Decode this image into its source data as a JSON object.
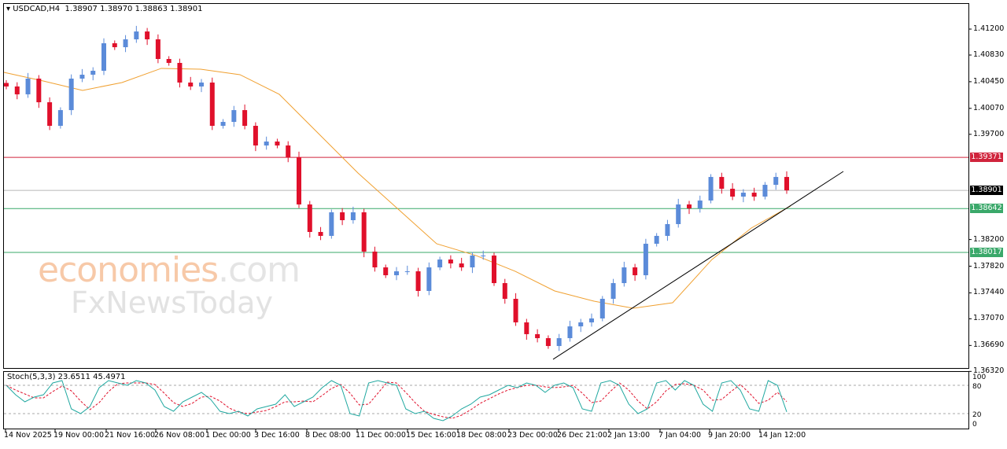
{
  "header": {
    "symbol": "USDCAD,H4",
    "ohlc": "1.38907 1.38970 1.38863 1.38901"
  },
  "watermark": {
    "brand": "economies",
    "suffix": ".com",
    "sub": "FxNewsToday"
  },
  "chart_data": {
    "type": "candlestick",
    "symbol": "USDCAD",
    "timeframe": "H4",
    "colors": {
      "bull": "#5b8bd9",
      "bear": "#e0102b",
      "ma": "#f0a030",
      "trendline": "#000000"
    },
    "closes": [
      1.40382,
      1.4027,
      1.40494,
      1.40157,
      1.39821,
      1.40045,
      1.40494,
      1.4055,
      1.40606,
      1.40998,
      1.40942,
      1.41054,
      1.41166,
      1.41054,
      1.40774,
      1.40718,
      1.40438,
      1.40382,
      1.40438,
      1.39821,
      1.39877,
      1.40045,
      1.39821,
      1.39541,
      1.39597,
      1.39541,
      1.39373,
      1.387,
      1.38308,
      1.38252,
      1.38588,
      1.38476,
      1.38588,
      1.38028,
      1.37803,
      1.37691,
      1.37747,
      1.37747,
      1.37467,
      1.37803,
      1.37915,
      1.37859,
      1.37803,
      1.37972,
      1.37972,
      1.37579,
      1.37355,
      1.37019,
      1.36851,
      1.36794,
      1.36682,
      1.36794,
      1.36962,
      1.37019,
      1.37075,
      1.37355,
      1.37579,
      1.37803,
      1.37691,
      1.3814,
      1.38252,
      1.3842,
      1.387,
      1.38644,
      1.38756,
      1.39092,
      1.38924,
      1.38812,
      1.38868,
      1.38812,
      1.3898,
      1.39092,
      1.38901
    ],
    "moving_average": [
      1.40583,
      1.4046,
      1.40326,
      1.40438,
      1.4064,
      1.40628,
      1.4055,
      1.4027,
      1.39709,
      1.39149,
      1.38644,
      1.3814,
      1.37972,
      1.37747,
      1.37467,
      1.37321,
      1.3722,
      1.37299,
      1.37916,
      1.38364,
      1.38678
    ],
    "trendline": {
      "start": 1.36492,
      "end": 1.39171
    },
    "levels": [
      {
        "price": "1.39371",
        "color": "#d0243c"
      },
      {
        "price": "1.38901",
        "color": "#000000",
        "line": "#b8b8b8"
      },
      {
        "price": "1.38642",
        "color": "#3aa86a"
      },
      {
        "price": "1.38017",
        "color": "#3aa86a"
      }
    ],
    "y_ticks": [
      "1.41200",
      "1.40830",
      "1.40450",
      "1.40070",
      "1.39700",
      "1.38200",
      "1.37820",
      "1.37440",
      "1.37070",
      "1.36690",
      "1.36320"
    ],
    "x_ticks": [
      "14 Nov 2025",
      "19 Nov 00:00",
      "21 Nov 16:00",
      "26 Nov 08:00",
      "1 Dec 00:00",
      "3 Dec 16:00",
      "8 Dec 08:00",
      "11 Dec 00:00",
      "15 Dec 16:00",
      "18 Dec 08:00",
      "23 Dec 00:00",
      "26 Dec 21:00",
      "2 Jan 13:00",
      "7 Jan 04:00",
      "9 Jan 20:00",
      "14 Jan 12:00"
    ],
    "stochastic": {
      "label": "Stoch(5,3,3) 23.6511 45.4971",
      "levels": [
        "100",
        "80",
        "20",
        "0"
      ],
      "k": [
        80,
        60,
        45,
        55,
        60,
        85,
        90,
        30,
        20,
        35,
        75,
        90,
        85,
        80,
        90,
        85,
        70,
        35,
        25,
        45,
        55,
        65,
        50,
        25,
        20,
        25,
        15,
        30,
        35,
        40,
        60,
        35,
        45,
        55,
        75,
        90,
        80,
        20,
        15,
        85,
        90,
        85,
        80,
        30,
        20,
        25,
        10,
        5,
        15,
        30,
        40,
        55,
        60,
        70,
        80,
        75,
        85,
        80,
        65,
        80,
        85,
        75,
        30,
        25,
        85,
        90,
        80,
        40,
        20,
        30,
        85,
        90,
        70,
        90,
        80,
        40,
        25,
        85,
        90,
        70,
        30,
        25,
        90,
        80,
        23.65
      ],
      "colors": {
        "k": "#20a8a0",
        "d": "#e0102b"
      }
    }
  }
}
